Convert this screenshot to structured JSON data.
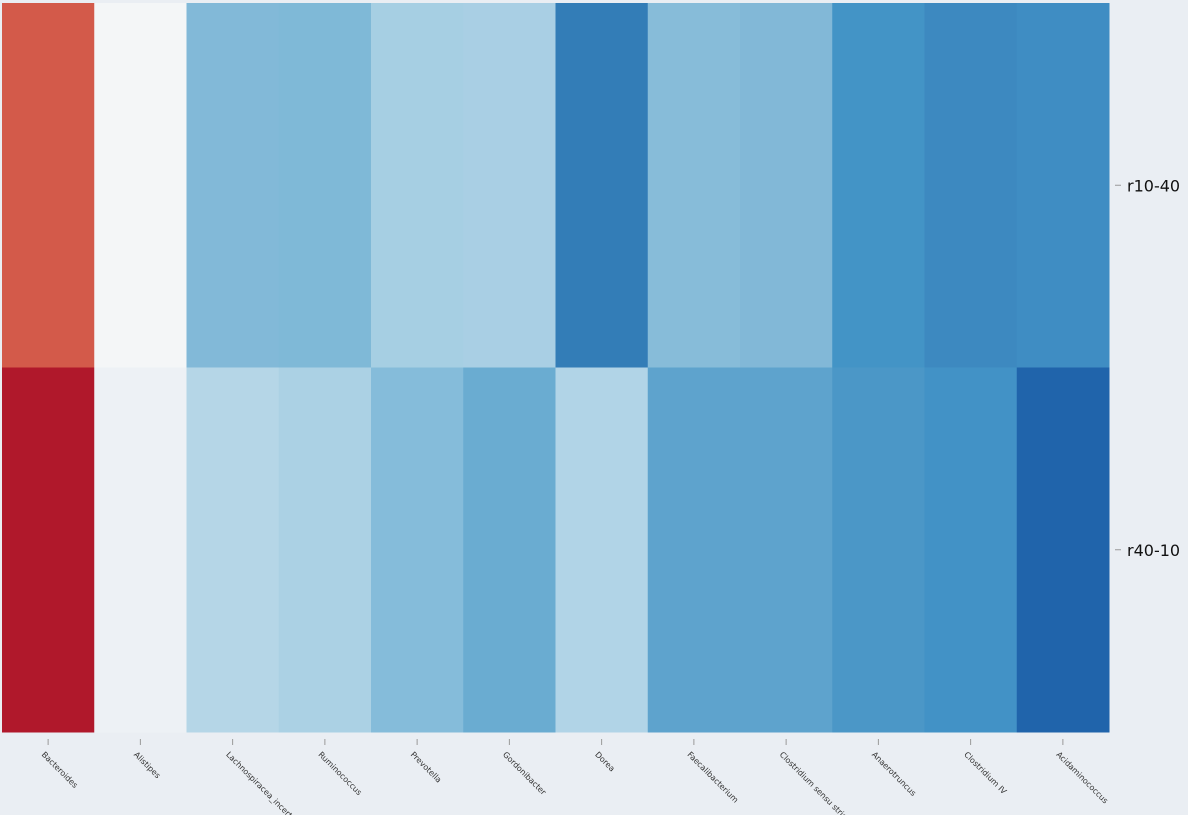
{
  "chart_data": {
    "type": "heatmap",
    "columns": [
      "Bacteroides",
      "Alistipes",
      "Lachnospiracea_incertae_sedis",
      "Ruminococcus",
      "Prevotella",
      "Gordonibacter",
      "Dorea",
      "Faecalibacterium",
      "Clostridium sensu stricto",
      "Anaerotruncus",
      "Clostridium IV",
      "Acidaminococcus"
    ],
    "rows": [
      "r10-40",
      "r40-10"
    ],
    "colormap": "RdBu_r",
    "colorbar": false,
    "cell_colors": [
      [
        "#d35a4a",
        "#f4f6f7",
        "#82b9d8",
        "#7fb9d7",
        "#a6cfe3",
        "#a9cfe4",
        "#337db7",
        "#87bcd9",
        "#82b8d7",
        "#4394c6",
        "#3d89c0",
        "#3f8dc3"
      ],
      [
        "#b0182b",
        "#edf1f5",
        "#b5d6e7",
        "#abd1e4",
        "#85bcda",
        "#6aacd1",
        "#b1d4e7",
        "#5ea3cd",
        "#5ea3cd",
        "#4b97c7",
        "#4292c6",
        "#2064ab"
      ]
    ]
  }
}
